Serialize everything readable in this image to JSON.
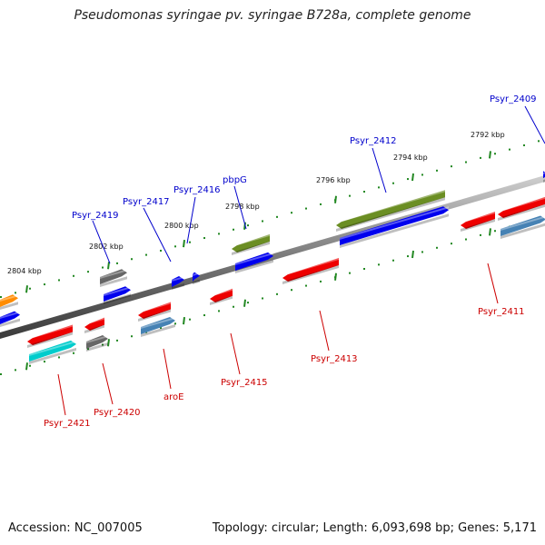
{
  "title": "Pseudomonas syringae pv. syringae B728a, complete genome",
  "footer": {
    "accession": "Accession: NC_007005",
    "summary": "Topology: circular; Length: 6,093,698 bp; Genes: 5,171"
  },
  "colors": {
    "backbone": "#888888",
    "tick": "#228822",
    "top_label": "#0000cc",
    "bottom_label": "#cc0000"
  },
  "ticks": [
    {
      "label": "2804 kbp"
    },
    {
      "label": "2802 kbp"
    },
    {
      "label": "2800 kbp"
    },
    {
      "label": "2798 kbp"
    },
    {
      "label": "2796 kbp"
    },
    {
      "label": "2794 kbp"
    },
    {
      "label": "2792 kbp"
    }
  ],
  "genes_top": [
    {
      "name": "Psyr_2419"
    },
    {
      "name": "Psyr_2417"
    },
    {
      "name": "Psyr_2416"
    },
    {
      "name": "pbpG"
    },
    {
      "name": "Psyr_2412"
    },
    {
      "name": "Psyr_2409"
    }
  ],
  "genes_bottom": [
    {
      "name": "Psyr_2421"
    },
    {
      "name": "Psyr_2420"
    },
    {
      "name": "aroE"
    },
    {
      "name": "Psyr_2415"
    },
    {
      "name": "Psyr_2413"
    },
    {
      "name": "Psyr_2411"
    }
  ],
  "feature_colors": {
    "red": "#ee0000",
    "blue": "#0000ee",
    "gray": "#666666",
    "olive": "#6b8e23",
    "orange": "#ff8c00",
    "cyan": "#00cccc",
    "steel": "#4682b4"
  }
}
